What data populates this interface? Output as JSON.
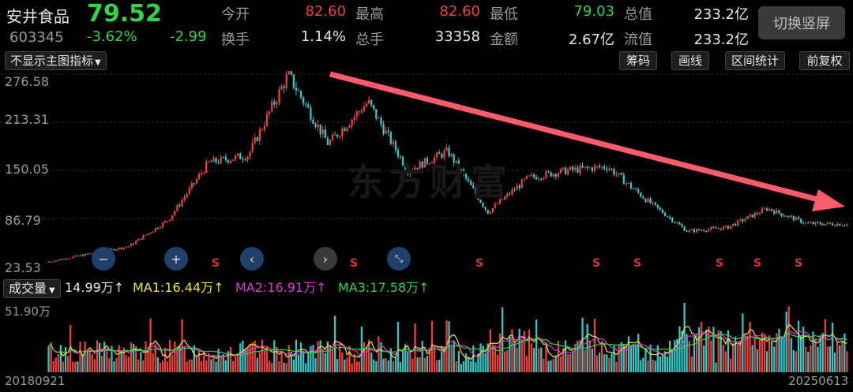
{
  "header": {
    "stock_name": "安井食品",
    "price": "79.52",
    "code": "603345",
    "change_pct": "-3.62%",
    "change_amt": "-2.99",
    "stats": [
      {
        "label": "今开",
        "value": "82.60",
        "color": "red"
      },
      {
        "label": "最高",
        "value": "82.60",
        "color": "red"
      },
      {
        "label": "最低",
        "value": "79.03",
        "color": "green"
      },
      {
        "label": "总值",
        "value": "233.2亿",
        "color": "white"
      },
      {
        "label": "换手",
        "value": "1.14%",
        "color": "white"
      },
      {
        "label": "总手",
        "value": "33358",
        "color": "white"
      },
      {
        "label": "金额",
        "value": "2.67亿",
        "color": "white"
      },
      {
        "label": "流值",
        "value": "233.2亿",
        "color": "white"
      }
    ],
    "switch_button": "切换竖屏"
  },
  "toolbar": {
    "indicator_dropdown": "不显示主图指标",
    "buttons": [
      "筹码",
      "画线",
      "区间统计",
      "前复权"
    ]
  },
  "price_axis": [
    "276.58",
    "213.31",
    "150.05",
    "86.79",
    "23.53"
  ],
  "watermark": "东方财富",
  "signal_label": "S",
  "volume_panel": {
    "dropdown": "成交量",
    "current": "14.99万",
    "ma1": "MA1:16.44万",
    "ma2": "MA2:16.91万",
    "ma3": "MA3:17.58万",
    "arrow": "↑",
    "axis_top": "51.90万"
  },
  "dates": {
    "start": "20180921",
    "end": "20250613"
  },
  "colors": {
    "up": "#f0403c",
    "down": "#33c9c9",
    "ma1": "#f2e33a",
    "ma2": "#e03ad6",
    "ma3": "#33d24b",
    "trend_arrow": "#ff5b6b"
  },
  "chart_data": {
    "type": "candlestick",
    "x_range": [
      "20180921",
      "20250613"
    ],
    "ylim": [
      23.53,
      276.58
    ],
    "close_trend": [
      {
        "date": "2018-09",
        "close": 30
      },
      {
        "date": "2019-04",
        "close": 40
      },
      {
        "date": "2019-10",
        "close": 50
      },
      {
        "date": "2020-03",
        "close": 85
      },
      {
        "date": "2020-07",
        "close": 160
      },
      {
        "date": "2020-10",
        "close": 170
      },
      {
        "date": "2021-01",
        "close": 276
      },
      {
        "date": "2021-03",
        "close": 185
      },
      {
        "date": "2021-06",
        "close": 240
      },
      {
        "date": "2021-09",
        "close": 150
      },
      {
        "date": "2021-12",
        "close": 175
      },
      {
        "date": "2022-04",
        "close": 95
      },
      {
        "date": "2022-09",
        "close": 140
      },
      {
        "date": "2023-02",
        "close": 150
      },
      {
        "date": "2023-06",
        "close": 155
      },
      {
        "date": "2023-10",
        "close": 110
      },
      {
        "date": "2024-01",
        "close": 70
      },
      {
        "date": "2024-06",
        "close": 75
      },
      {
        "date": "2024-10",
        "close": 100
      },
      {
        "date": "2025-01",
        "close": 80
      },
      {
        "date": "2025-06",
        "close": 79.52
      }
    ]
  }
}
